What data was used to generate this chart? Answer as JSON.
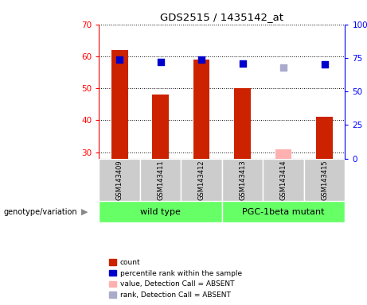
{
  "title": "GDS2515 / 1435142_at",
  "samples": [
    "GSM143409",
    "GSM143411",
    "GSM143412",
    "GSM143413",
    "GSM143414",
    "GSM143415"
  ],
  "count_values": [
    62.0,
    48.0,
    59.0,
    50.0,
    null,
    41.0
  ],
  "count_absent": [
    null,
    null,
    null,
    null,
    31.0,
    null
  ],
  "percentile_values": [
    74.0,
    72.0,
    74.0,
    71.0,
    null,
    70.0
  ],
  "percentile_absent": [
    null,
    null,
    null,
    null,
    68.0,
    null
  ],
  "ylim_left": [
    28,
    70
  ],
  "ylim_right": [
    0,
    100
  ],
  "yticks_left": [
    30,
    40,
    50,
    60,
    70
  ],
  "yticks_right": [
    0,
    25,
    50,
    75,
    100
  ],
  "ytick_labels_right": [
    "0",
    "25",
    "50",
    "75",
    "100%"
  ],
  "wild_type_count": 3,
  "wild_type_label": "wild type",
  "mutant_label": "PGC-1beta mutant",
  "bar_color": "#CC2200",
  "bar_absent_color": "#FFB0B0",
  "dot_color": "#0000CC",
  "dot_absent_color": "#AAAACC",
  "wild_type_bg": "#66FF66",
  "mutant_bg": "#66FF66",
  "sample_box_color": "#CCCCCC",
  "legend_labels": [
    "count",
    "percentile rank within the sample",
    "value, Detection Call = ABSENT",
    "rank, Detection Call = ABSENT"
  ],
  "legend_colors": [
    "#CC2200",
    "#0000CC",
    "#FFB0B0",
    "#AAAACC"
  ],
  "genotype_label": "genotype/variation",
  "bar_width": 0.4,
  "dot_size": 35
}
